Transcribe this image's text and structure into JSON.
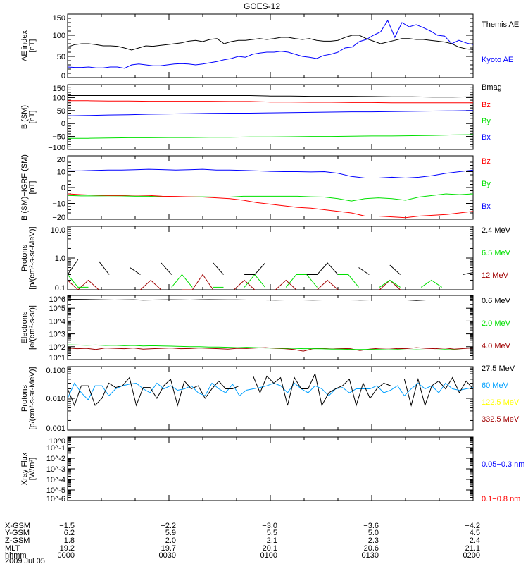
{
  "chart_data": {
    "type": "line",
    "title": "GOES-12",
    "x_range_minutes": [
      0,
      120
    ],
    "panels": [
      {
        "ylabel": [
          "AE index",
          "[nT]"
        ],
        "scale": "linear",
        "ylim": [
          0,
          150
        ],
        "ticks": [
          0,
          50,
          100,
          150
        ],
        "tick_labels": [
          "0",
          "50",
          "100",
          "150"
        ],
        "minor_step": 10,
        "series": [
          {
            "name": "Kyoto AE",
            "color": "#0000ff",
            "values": [
              25,
              24,
              24,
              25,
              23,
              23,
              25,
              25,
              22,
              30,
              32,
              30,
              28,
              28,
              30,
              32,
              33,
              32,
              30,
              32,
              35,
              38,
              42,
              45,
              50,
              48,
              55,
              58,
              60,
              60,
              62,
              60,
              55,
              50,
              48,
              45,
              52,
              55,
              60,
              70,
              72,
              85,
              90,
              100,
              108,
              135,
              95,
              130,
              120,
              125,
              118,
              110,
              100,
              98,
              80,
              88,
              82,
              78
            ]
          },
          {
            "name": "Themis AE",
            "color": "#000000",
            "values": [
              72,
              78,
              80,
              80,
              78,
              75,
              75,
              74,
              70,
              65,
              70,
              75,
              74,
              76,
              78,
              80,
              82,
              86,
              88,
              85,
              90,
              92,
              80,
              85,
              88,
              88,
              90,
              92,
              90,
              92,
              95,
              95,
              92,
              90,
              92,
              88,
              86,
              86,
              88,
              95,
              100,
              100,
              92,
              86,
              80,
              84,
              88,
              92,
              92,
              90,
              90,
              88,
              86,
              84,
              80,
              72,
              68,
              66
            ]
          }
        ]
      },
      {
        "ylabel": [
          "B (SM)",
          "[nT]"
        ],
        "scale": "linear",
        "ylim": [
          -100,
          150
        ],
        "ticks": [
          -100,
          -50,
          0,
          50,
          100,
          150
        ],
        "tick_labels": [
          "−100",
          "−50",
          "0",
          "50",
          "100",
          "150"
        ],
        "minor_step": 10,
        "series": [
          {
            "name": "Bx",
            "color": "#0000ff",
            "values": [
              30,
              31,
              33,
              34,
              36,
              37,
              38,
              39,
              40,
              40,
              41,
              42,
              43,
              44,
              45,
              45,
              46,
              47,
              48,
              49,
              50
            ]
          },
          {
            "name": "By",
            "color": "#00e000",
            "values": [
              -57,
              -57,
              -56,
              -55,
              -55,
              -54,
              -54,
              -53,
              -53,
              -52,
              -52,
              -51,
              -50,
              -50,
              -49,
              -48,
              -48,
              -47,
              -46,
              -44,
              -43
            ]
          },
          {
            "name": "Bz",
            "color": "#ff0000",
            "values": [
              88,
              88,
              87,
              87,
              86,
              86,
              86,
              86,
              85,
              85,
              83,
              83,
              82,
              82,
              81,
              81,
              80,
              80,
              80,
              80,
              80
            ]
          },
          {
            "name": "Bmag",
            "color": "#000000",
            "values": [
              108,
              108,
              108,
              108,
              108,
              108,
              108,
              108,
              108,
              108,
              106,
              106,
              105,
              105,
              105,
              104,
              103,
              103,
              102,
              102,
              103
            ]
          }
        ]
      },
      {
        "ylabel": [
          "B (SM)−IGRF (SM)",
          "[nT]"
        ],
        "scale": "linear",
        "ylim": [
          -20,
          20
        ],
        "ticks": [
          -20,
          -10,
          0,
          10,
          20
        ],
        "tick_labels": [
          "−20",
          "−10",
          "0",
          "10",
          "20"
        ],
        "minor_step": 2,
        "series": [
          {
            "name": "Bx",
            "color": "#0000ff",
            "values": [
              10.5,
              10.5,
              10.8,
              11,
              11,
              11.2,
              11.5,
              11.3,
              11,
              11.2,
              11.5,
              11,
              11,
              10.8,
              10.5,
              10.2,
              10,
              10,
              9.8,
              10,
              9,
              7,
              6,
              6,
              6.5,
              6,
              6.5,
              7.5,
              9,
              10,
              11
            ]
          },
          {
            "name": "By",
            "color": "#00e000",
            "values": [
              -5,
              -5.3,
              -5.3,
              -5.2,
              -5.3,
              -5.5,
              -5.5,
              -5.8,
              -6,
              -5.9,
              -5.8,
              -6,
              -6,
              -5.5,
              -5.5,
              -5.5,
              -5.5,
              -5.5,
              -5.8,
              -6,
              -7,
              -8.5,
              -7,
              -6.5,
              -7,
              -8,
              -6,
              -5,
              -4,
              -4.5,
              -4
            ]
          },
          {
            "name": "Bz",
            "color": "#ff0000",
            "values": [
              -4,
              -4.5,
              -4.8,
              -5,
              -5,
              -4.8,
              -5,
              -5.5,
              -5.6,
              -5.8,
              -6,
              -6.5,
              -7,
              -8,
              -9.5,
              -10.5,
              -11.5,
              -12.5,
              -13,
              -14,
              -15,
              -16,
              -18,
              -18,
              -18.5,
              -19,
              -18,
              -17.5,
              -17,
              -16,
              -15
            ]
          }
        ]
      },
      {
        "ylabel": [
          "Protons",
          "[p/(cm²-s-sr-MeV)]"
        ],
        "scale": "log",
        "ylim": [
          0.1,
          10
        ],
        "ticks": [
          0.1,
          1,
          10
        ],
        "tick_labels": [
          "0.1",
          "1.0",
          "10.0"
        ],
        "series": [
          {
            "name": "12 MeV",
            "color": "#a00000",
            "values": [
              0.2,
              0.1,
              0.2,
              0.1,
              null,
              0.1,
              null,
              0.1,
              0.2,
              0.1,
              null,
              0.1,
              0.1,
              0.3,
              0.1,
              null,
              0.1,
              0.2,
              0.1,
              null,
              0.1,
              0.2,
              0.1,
              null,
              0.1,
              0.2,
              0.1,
              null,
              0.1,
              null,
              0.1,
              0.2,
              0.1,
              null,
              0.1,
              null,
              0.1,
              null,
              0.1,
              null
            ]
          },
          {
            "name": "6.5 MeV",
            "color": "#00e000",
            "values": [
              0.3,
              0.12,
              0.12,
              null,
              0.15,
              null,
              0.12,
              null,
              0.12,
              null,
              0.12,
              0.3,
              0.12,
              null,
              0.12,
              0.12,
              null,
              0.12,
              0.3,
              0.12,
              null,
              0.12,
              0.3,
              0.3,
              0.12,
              null,
              0.3,
              0.3,
              0.12,
              null,
              0.12,
              0.2,
              0.12,
              null,
              0.12,
              0.2,
              0.12,
              null,
              0.3,
              null
            ]
          },
          {
            "name": "2.4 MeV",
            "color": "#000000",
            "values": [
              0.3,
              0.9,
              null,
              0.8,
              0.3,
              null,
              0.5,
              0.3,
              null,
              0.7,
              0.3,
              null,
              0.6,
              null,
              0.7,
              0.3,
              null,
              0.3,
              0.3,
              0.7,
              null,
              1.0,
              null,
              0.3,
              0.3,
              0.7,
              0.3,
              null,
              0.5,
              0.3,
              null,
              0.6,
              0.3,
              null,
              0.3,
              null,
              0.9,
              null,
              0.3,
              0.35
            ]
          }
        ]
      },
      {
        "ylabel": [
          "Electrons",
          "[e/(cm²-s-sr)]"
        ],
        "scale": "log",
        "ylim": [
          10,
          1000000
        ],
        "ticks": [
          10,
          100,
          1000,
          10000,
          100000,
          1000000
        ],
        "tick_labels": [
          "10^1",
          "10^2",
          "10^3",
          "10^4",
          "10^5",
          "10^6"
        ],
        "series": [
          {
            "name": "4.0 MeV",
            "color": "#a00000",
            "values": [
              80,
              70,
              75,
              60,
              80,
              75,
              70,
              80,
              65,
              70,
              75,
              80,
              70,
              72,
              80,
              75,
              70,
              65,
              75,
              72,
              80,
              85,
              75,
              70,
              60,
              45,
              70,
              75,
              80,
              72,
              70,
              50,
              65,
              75,
              80,
              70,
              72,
              85,
              75,
              70,
              80,
              65,
              72,
              80
            ]
          },
          {
            "name": "2.0 MeV",
            "color": "#00e000",
            "values": [
              140,
              135,
              130,
              135,
              125,
              130,
              120,
              125,
              115,
              120,
              115,
              110,
              105,
              100,
              100,
              95,
              95,
              90,
              85,
              90,
              85,
              80,
              78,
              75,
              75,
              70,
              70,
              68,
              65,
              65,
              62,
              60,
              62,
              60,
              58,
              60,
              55,
              58,
              55,
              55,
              60,
              58,
              55,
              55
            ]
          },
          {
            "name": "0.6 MeV",
            "color": "#000000",
            "values": [
              500000,
              490000,
              480000,
              470000,
              450000,
              440000,
              450000,
              460000,
              430000,
              440000,
              450000,
              460000,
              450000,
              440000,
              460000,
              470000,
              460000,
              450000,
              450000,
              440000,
              440000,
              440000,
              430000,
              440000,
              440000,
              440000,
              430000,
              440000,
              440000,
              440000,
              440000,
              430000,
              440000,
              440000,
              440000,
              440000,
              440000,
              400000,
              440000,
              440000,
              440000,
              440000,
              440000,
              440000
            ]
          }
        ]
      },
      {
        "ylabel": [
          "Protons",
          "[p/(cm²-s-sr-MeV)]"
        ],
        "scale": "log",
        "ylim": [
          0.001,
          0.1
        ],
        "ticks": [
          0.001,
          0.01,
          0.1
        ],
        "tick_labels": [
          "0.001",
          "0.010",
          "0.100"
        ],
        "series": [
          {
            "name": "332.5 MeV",
            "color": "#a00000",
            "values": []
          },
          {
            "name": "122.5 MeV",
            "color": "#ffff00",
            "values": []
          },
          {
            "name": "60 MeV",
            "color": "#00a0ff",
            "values": [
              0.01,
              0.03,
              0.015,
              0.009,
              0.025,
              0.025,
              0.012,
              0.02,
              0.025,
              0.028,
              0.03,
              0.02,
              0.015,
              0.03,
              0.02,
              0.025,
              0.018,
              0.02,
              0.025,
              0.015,
              0.012,
              0.03,
              0.02,
              0.015,
              0.028,
              0.012,
              0.018,
              0.02,
              0.022,
              0.025,
              0.03,
              0.025,
              0.015,
              0.03,
              0.02,
              0.015,
              0.025,
              0.02,
              0.012,
              0.02,
              0.022,
              0.015,
              0.02,
              0.02,
              0.02,
              0.025,
              0.015,
              0.018,
              0.025,
              0.012,
              0.02,
              0.03,
              0.02,
              0.025,
              0.015,
              0.03,
              0.02,
              0.018,
              0.02,
              0.022
            ]
          },
          {
            "name": "27.5 MeV",
            "color": "#000000",
            "values": [
              0.02,
              0.006,
              0.025,
              0.025,
              0.006,
              0.01,
              0.03,
              0.022,
              0.025,
              0.045,
              0.006,
              0.022,
              0.022,
              0.01,
              0.025,
              0.04,
              0.006,
              0.035,
              0.02,
              0.025,
              0.01,
              0.02,
              0.035,
              0.02,
              0.02,
              0.025,
              null,
              0.05,
              0.015,
              0.05,
              0.03,
              0.045,
              0.006,
              0.045,
              0.02,
              0.02,
              0.06,
              0.006,
              0.015,
              0.02,
              0.025,
              0.04,
              0.006,
              0.03,
              0.01,
              0.02,
              0.03,
              0.025,
              null,
              0.04,
              0.006,
              0.04,
              0.006,
              0.025,
              0.035,
              0.02,
              0.045,
              0.015,
              0.035,
              0.02
            ]
          }
        ]
      },
      {
        "ylabel": [
          "Xray Flux",
          "[W/m²]"
        ],
        "scale": "log",
        "ylim": [
          1e-06,
          1
        ],
        "ticks": [
          1e-06,
          1e-05,
          0.0001,
          0.001,
          0.01,
          0.1,
          1
        ],
        "tick_labels": [
          "10^-6",
          "10^-5",
          "10^-4",
          "10^-3",
          "10^-2",
          "10^-1",
          "10^0"
        ],
        "series": [
          {
            "name": "0.1−0.8 nm",
            "color": "#ff0000",
            "values": []
          },
          {
            "name": "0.05−0.3 nm",
            "color": "#0000ff",
            "values": []
          }
        ]
      }
    ],
    "bottom_axis": {
      "row_labels": [
        "X-GSM",
        "Y-GSM",
        "Z-GSM",
        "MLT",
        "hhmm"
      ],
      "columns": [
        [
          "−1.5",
          "6.2",
          "1.8",
          "19.2",
          "0000"
        ],
        [
          "−2.2",
          "5.9",
          "2.0",
          "19.7",
          "0030"
        ],
        [
          "−3.0",
          "5.5",
          "2.1",
          "20.1",
          "0100"
        ],
        [
          "−3.6",
          "5.0",
          "2.3",
          "20.6",
          "0130"
        ],
        [
          "−4.2",
          "4.5",
          "2.4",
          "21.1",
          "0200"
        ]
      ],
      "date": "2009 Jul 05"
    }
  }
}
